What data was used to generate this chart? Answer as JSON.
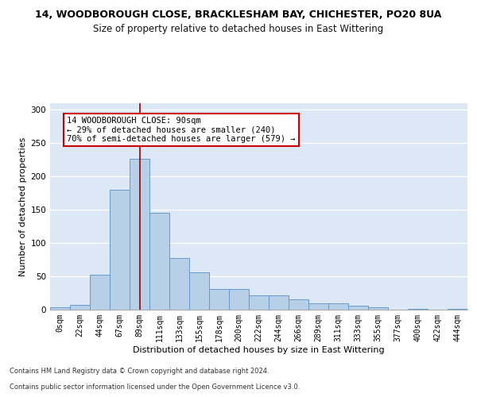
{
  "title1": "14, WOODBOROUGH CLOSE, BRACKLESHAM BAY, CHICHESTER, PO20 8UA",
  "title2": "Size of property relative to detached houses in East Wittering",
  "xlabel": "Distribution of detached houses by size in East Wittering",
  "ylabel": "Number of detached properties",
  "bar_values": [
    3,
    7,
    52,
    180,
    226,
    145,
    77,
    56,
    31,
    31,
    22,
    22,
    16,
    10,
    10,
    6,
    3,
    0,
    1,
    0,
    1
  ],
  "x_labels": [
    "0sqm",
    "22sqm",
    "44sqm",
    "67sqm",
    "89sqm",
    "111sqm",
    "133sqm",
    "155sqm",
    "178sqm",
    "200sqm",
    "222sqm",
    "244sqm",
    "266sqm",
    "289sqm",
    "311sqm",
    "333sqm",
    "355sqm",
    "377sqm",
    "400sqm",
    "422sqm",
    "444sqm"
  ],
  "bar_color": "#b8cfe8",
  "bar_edge_color": "#6699cc",
  "vline_color": "#990000",
  "annotation_text": "14 WOODBOROUGH CLOSE: 90sqm\n← 29% of detached houses are smaller (240)\n70% of semi-detached houses are larger (579) →",
  "annotation_box_color": "#ffffff",
  "annotation_box_edge": "#cc0000",
  "ylim": [
    0,
    310
  ],
  "yticks": [
    0,
    50,
    100,
    150,
    200,
    250,
    300
  ],
  "background_color": "#dce8f5",
  "footer1": "Contains HM Land Registry data © Crown copyright and database right 2024.",
  "footer2": "Contains public sector information licensed under the Open Government Licence v3.0.",
  "title1_fontsize": 9,
  "title2_fontsize": 8.5,
  "axis_label_fontsize": 8,
  "tick_fontsize": 7,
  "footer_fontsize": 6,
  "annotation_fontsize": 7.5,
  "vline_x_index": 4.0
}
